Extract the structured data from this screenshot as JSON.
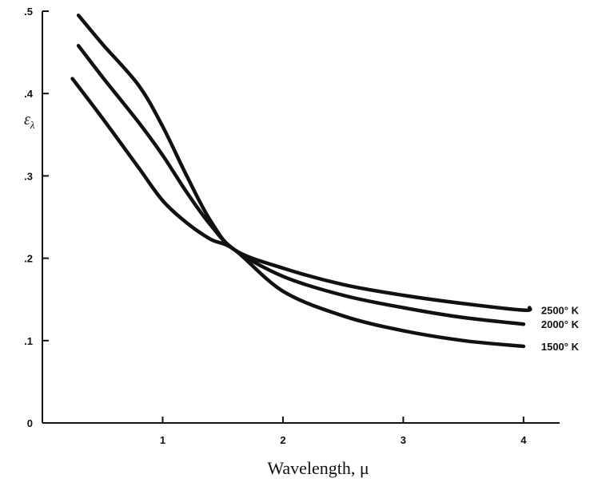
{
  "chart_data": {
    "type": "line",
    "title": "",
    "xlabel": "Wavelength, μ",
    "ylabel": "ε_λ",
    "ylabel_main": "ε",
    "ylabel_sub": "λ",
    "xlim": [
      0,
      4.3
    ],
    "ylim": [
      0,
      0.5
    ],
    "x_ticks": [
      1,
      2,
      3,
      4
    ],
    "x_tick_labels": [
      "1",
      "2",
      "3",
      "4"
    ],
    "y_ticks": [
      0,
      0.1,
      0.2,
      0.3,
      0.4,
      0.5
    ],
    "y_tick_labels": [
      "0",
      ".1",
      ".2",
      ".3",
      ".4",
      ".5"
    ],
    "grid": false,
    "legend": "none",
    "series": [
      {
        "name": "2500° K",
        "x": [
          0.3,
          0.5,
          0.8,
          1.0,
          1.2,
          1.4,
          1.6,
          2.0,
          2.5,
          3.0,
          3.5,
          4.0,
          4.05
        ],
        "y": [
          0.495,
          0.46,
          0.41,
          0.36,
          0.3,
          0.245,
          0.21,
          0.188,
          0.168,
          0.155,
          0.145,
          0.137,
          0.14
        ]
      },
      {
        "name": "2000° K",
        "x": [
          0.3,
          0.5,
          0.8,
          1.0,
          1.2,
          1.4,
          1.6,
          2.0,
          2.5,
          3.0,
          3.5,
          4.0
        ],
        "y": [
          0.458,
          0.42,
          0.365,
          0.325,
          0.28,
          0.24,
          0.21,
          0.178,
          0.155,
          0.14,
          0.128,
          0.12
        ]
      },
      {
        "name": "1500° K",
        "x": [
          0.25,
          0.5,
          0.8,
          1.0,
          1.2,
          1.4,
          1.6,
          2.0,
          2.5,
          3.0,
          3.5,
          4.0
        ],
        "y": [
          0.418,
          0.37,
          0.31,
          0.27,
          0.243,
          0.223,
          0.21,
          0.16,
          0.13,
          0.112,
          0.1,
          0.093
        ]
      }
    ]
  }
}
